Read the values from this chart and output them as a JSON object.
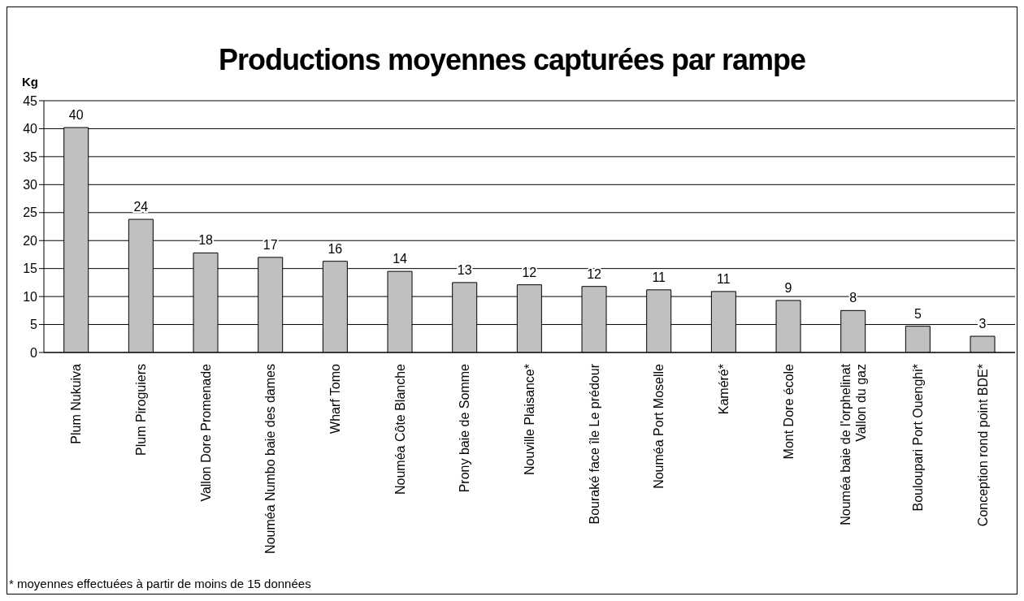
{
  "chart_data": {
    "type": "bar",
    "title": "Productions moyennes capturées par rampe",
    "ylabel": "Kg",
    "categories": [
      "Plum Nukuiva",
      "Plum Piroguiers",
      "Vallon Dore Promenade",
      "Nouméa Numbo baie des dames",
      "Wharf Tomo",
      "Nouméa Côte Blanche",
      "Prony baie de Somme",
      "Nouville Plaisance*",
      "Bouraké face île Le prédour",
      "Nouméa Port Moselle",
      "Kaméré*",
      "Mont Dore école",
      "Nouméa baie de l'orphelinat Vallon du gaz",
      "Bouloupari Port Ouenghi*",
      "Conception rond point BDE*"
    ],
    "values": [
      40.2,
      23.8,
      17.8,
      17.0,
      16.3,
      14.5,
      12.5,
      12.1,
      11.8,
      11.2,
      10.9,
      9.3,
      7.5,
      4.7,
      2.9
    ],
    "value_labels": [
      "40",
      "24",
      "18",
      "17",
      "16",
      "14",
      "13",
      "12",
      "12",
      "11",
      "11",
      "9",
      "8",
      "5",
      "3"
    ],
    "color": "#c0c0c0",
    "ylim": [
      0,
      45
    ],
    "yticks": [
      0,
      5,
      10,
      15,
      20,
      25,
      30,
      35,
      40,
      45
    ],
    "grid": "y",
    "annotations": [
      "* moyennes effectuées à partir de moins de 15 données"
    ]
  }
}
